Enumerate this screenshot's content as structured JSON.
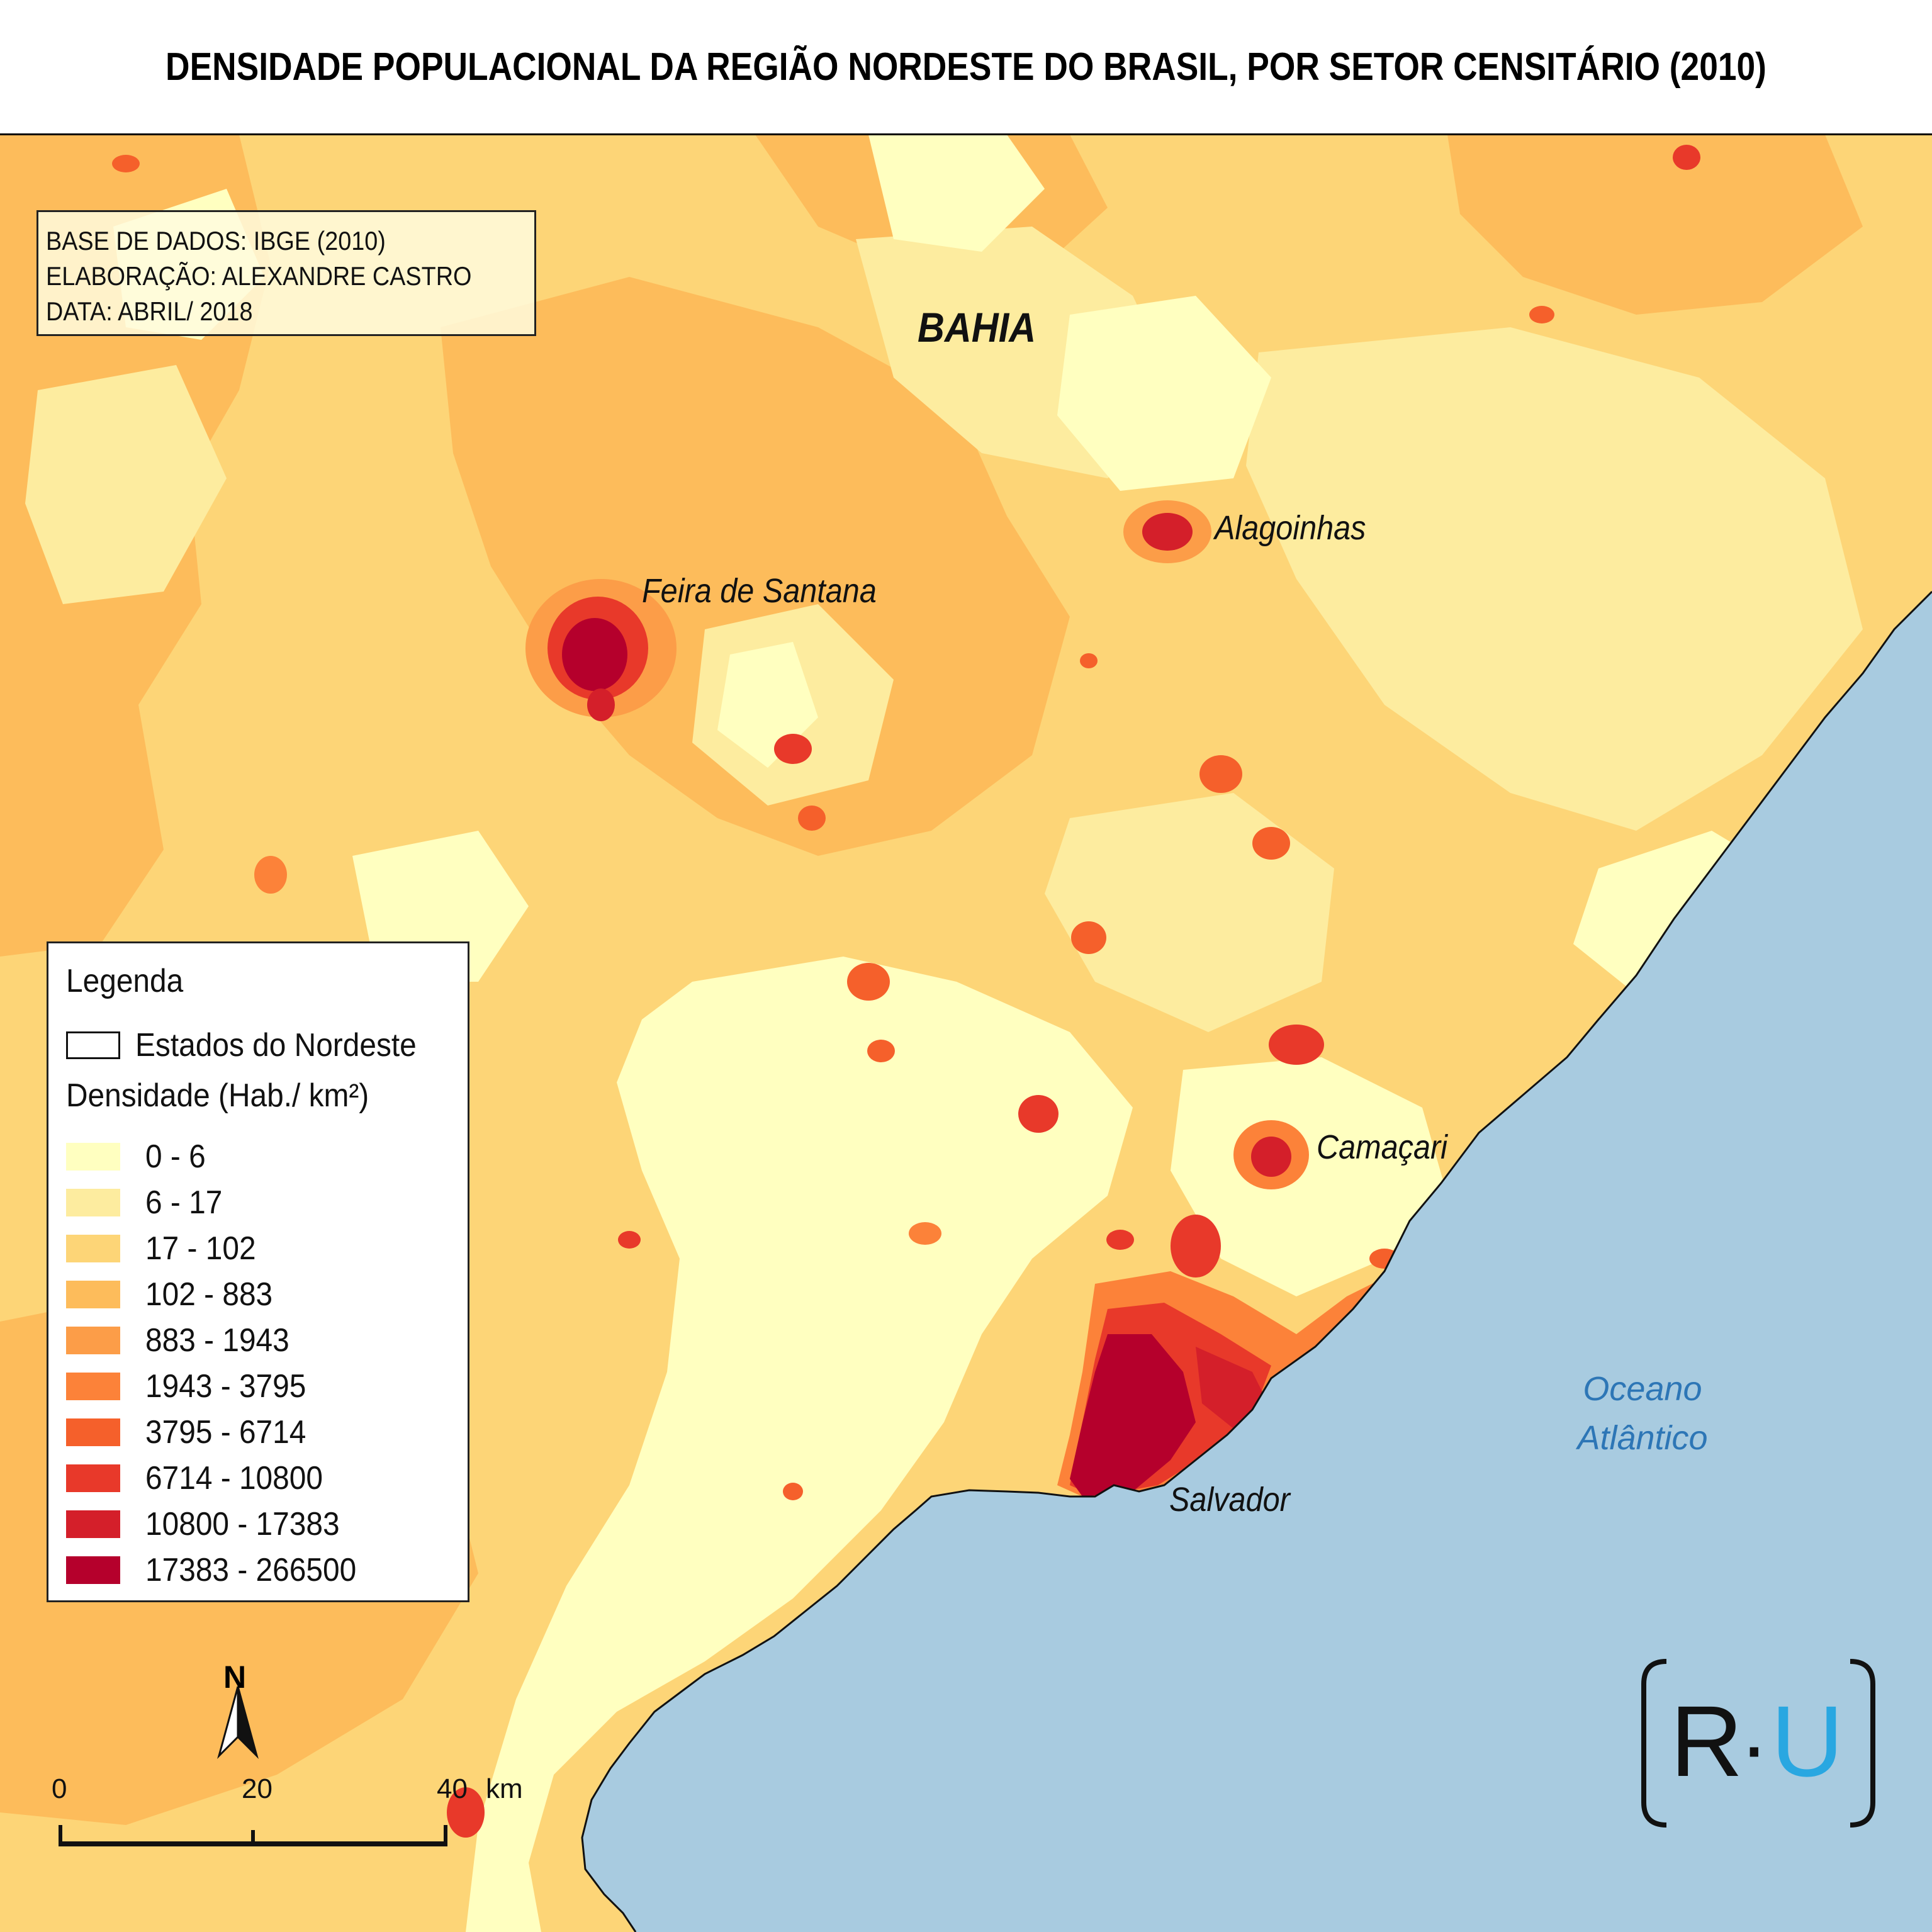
{
  "title": "DENSIDADE POPULACIONAL DA REGIÃO NORDESTE DO BRASIL, POR SETOR CENSITÁRIO (2010)",
  "credits": {
    "source": "BASE DE DADOS: IBGE (2010)",
    "author": "ELABORAÇÃO: ALEXANDRE CASTRO",
    "date": "DATA: ABRIL/ 2018"
  },
  "places": {
    "state": "BAHIA",
    "feira": "Feira de Santana",
    "alagoinhas": "Alagoinhas",
    "camacari": "Camaçari",
    "salvador": "Salvador",
    "ocean_line1": "Oceano",
    "ocean_line2": "Atlântico"
  },
  "legend": {
    "title": "Legenda",
    "states_label": "Estados do Nordeste",
    "density_title": "Densidade (Hab./ km²)",
    "classes": [
      {
        "label": "0 - 6",
        "color": "#ffffc0"
      },
      {
        "label": "6 - 17",
        "color": "#fdec9f"
      },
      {
        "label": "17 - 102",
        "color": "#fdd577"
      },
      {
        "label": "102 - 883",
        "color": "#fdbc5b"
      },
      {
        "label": "883 - 1943",
        "color": "#fc9d48"
      },
      {
        "label": "1943 - 3795",
        "color": "#fc8239"
      },
      {
        "label": "3795 - 6714",
        "color": "#f5602b"
      },
      {
        "label": "6714 - 10800",
        "color": "#e8392a"
      },
      {
        "label": "10800 - 17383",
        "color": "#d41f2a"
      },
      {
        "label": "17383 - 266500",
        "color": "#b5002c"
      }
    ]
  },
  "north": "N",
  "scale": {
    "t0": "0",
    "t1": "20",
    "t2": "40",
    "unit": "km"
  },
  "logo": {
    "left": "R",
    "dot": "·",
    "right": "U",
    "accent": "#29a7e1"
  },
  "colors": {
    "ocean": "#a8cbe0"
  }
}
